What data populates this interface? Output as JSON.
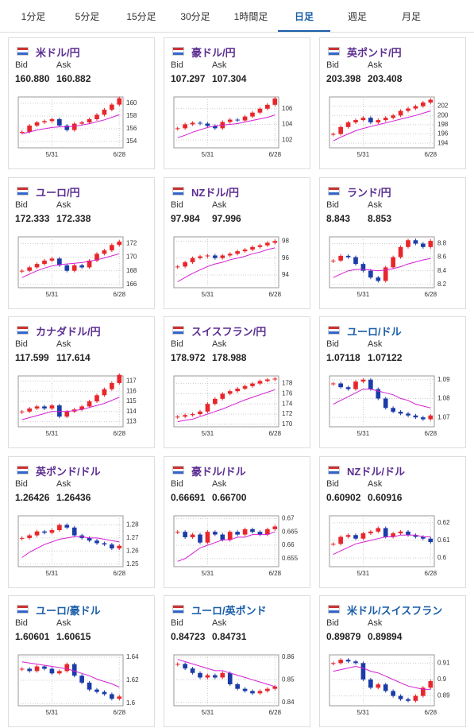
{
  "tabs": [
    "1分足",
    "5分足",
    "15分足",
    "30分足",
    "1時間足",
    "日足",
    "週足",
    "月足"
  ],
  "active_tab": 5,
  "labels": {
    "bid": "Bid",
    "ask": "Ask"
  },
  "chart_data": [
    {
      "type": "candlestick",
      "title": "米ドル/円",
      "color": "#5b2d90",
      "bid": "160.880",
      "ask": "160.882",
      "categories": [
        null,
        null,
        null,
        null,
        "5/31",
        null,
        null,
        null,
        null,
        null,
        null,
        null,
        null,
        "6/28"
      ],
      "values": [
        155.5,
        156.5,
        157,
        157.2,
        157.5,
        156.5,
        155.8,
        156.8,
        157,
        157.5,
        158.2,
        159,
        159.8,
        160.8
      ],
      "ma": [
        155.2,
        155.5,
        155.8,
        156,
        156.2,
        156.3,
        156.3,
        156.4,
        156.6,
        156.8,
        157.1,
        157.4,
        157.8,
        158.2
      ],
      "ylim": [
        153,
        161
      ],
      "yticks": [
        154,
        156,
        158,
        160
      ]
    },
    {
      "type": "candlestick",
      "title": "豪ドル/円",
      "color": "#5b2d90",
      "bid": "107.297",
      "ask": "107.304",
      "categories": [
        null,
        null,
        null,
        null,
        "5/31",
        null,
        null,
        null,
        null,
        null,
        null,
        null,
        null,
        "6/28"
      ],
      "values": [
        103.5,
        104,
        104.2,
        104.1,
        103.8,
        103.5,
        104.3,
        104.6,
        104.5,
        105,
        105.5,
        106,
        106.5,
        107.3
      ],
      "ma": [
        102.3,
        102.6,
        103,
        103.3,
        103.6,
        103.8,
        103.9,
        104,
        104.1,
        104.3,
        104.5,
        104.7,
        104.9,
        105.2
      ],
      "ylim": [
        101,
        107.5
      ],
      "yticks": [
        102,
        104,
        106
      ]
    },
    {
      "type": "candlestick",
      "title": "英ポンド/円",
      "color": "#5b2d90",
      "bid": "203.398",
      "ask": "203.408",
      "categories": [
        null,
        null,
        null,
        null,
        "5/31",
        null,
        null,
        null,
        null,
        null,
        null,
        null,
        null,
        "6/28"
      ],
      "values": [
        196,
        197.5,
        198.5,
        199,
        199.5,
        198.5,
        199,
        199.5,
        200,
        201,
        201.5,
        202,
        202.8,
        203.4
      ],
      "ma": [
        194.5,
        195.3,
        196,
        196.7,
        197.2,
        197.6,
        198,
        198.4,
        198.8,
        199.2,
        199.6,
        200,
        200.5,
        201
      ],
      "ylim": [
        193,
        204
      ],
      "yticks": [
        194,
        196,
        198,
        200,
        202
      ]
    },
    {
      "type": "candlestick",
      "title": "ユーロ/円",
      "color": "#5b2d90",
      "bid": "172.333",
      "ask": "172.338",
      "categories": [
        null,
        null,
        null,
        null,
        "5/31",
        null,
        null,
        null,
        null,
        null,
        null,
        null,
        null,
        "6/28"
      ],
      "values": [
        168,
        168.5,
        169,
        169.5,
        169.8,
        168.8,
        168,
        168.8,
        168.5,
        169.5,
        170.5,
        171,
        171.8,
        172.3
      ],
      "ma": [
        167,
        167.5,
        168,
        168.4,
        168.7,
        168.9,
        169,
        169.1,
        169.2,
        169.4,
        169.6,
        169.9,
        170.2,
        170.5
      ],
      "ylim": [
        165.5,
        173
      ],
      "yticks": [
        166,
        168,
        170,
        172
      ]
    },
    {
      "type": "candlestick",
      "title": "NZドル/円",
      "color": "#5b2d90",
      "bid": "97.984",
      "ask": "97.996",
      "categories": [
        null,
        null,
        null,
        null,
        "5/31",
        null,
        null,
        null,
        null,
        null,
        null,
        null,
        null,
        "6/28"
      ],
      "values": [
        95,
        95.5,
        96,
        96.2,
        96.3,
        96,
        96.3,
        96.5,
        96.8,
        97,
        97.3,
        97.5,
        97.8,
        98
      ],
      "ma": [
        93.2,
        93.7,
        94.2,
        94.6,
        95,
        95.3,
        95.5,
        95.8,
        96,
        96.2,
        96.5,
        96.7,
        97,
        97.2
      ],
      "ylim": [
        92.5,
        98.5
      ],
      "yticks": [
        94,
        96,
        98
      ]
    },
    {
      "type": "candlestick",
      "title": "ランド/円",
      "color": "#5b2d90",
      "bid": "8.843",
      "ask": "8.853",
      "categories": [
        null,
        null,
        null,
        null,
        "5/31",
        null,
        null,
        null,
        null,
        null,
        null,
        null,
        null,
        "6/28"
      ],
      "values": [
        8.55,
        8.62,
        8.6,
        8.5,
        8.4,
        8.3,
        8.25,
        8.45,
        8.6,
        8.75,
        8.85,
        8.8,
        8.75,
        8.84
      ],
      "ma": [
        8.3,
        8.35,
        8.4,
        8.42,
        8.42,
        8.41,
        8.4,
        8.41,
        8.43,
        8.46,
        8.5,
        8.53,
        8.56,
        8.58
      ],
      "ylim": [
        8.15,
        8.9
      ],
      "yticks": [
        8.2,
        8.4,
        8.6,
        8.8
      ]
    },
    {
      "type": "candlestick",
      "title": "カナダドル/円",
      "color": "#5b2d90",
      "bid": "117.599",
      "ask": "117.614",
      "categories": [
        null,
        null,
        null,
        null,
        "5/31",
        null,
        null,
        null,
        null,
        null,
        null,
        null,
        null,
        "6/28"
      ],
      "values": [
        114,
        114.3,
        114.5,
        114.3,
        114.6,
        113.5,
        114,
        114.2,
        114.5,
        115,
        115.6,
        116.2,
        116.8,
        117.6
      ],
      "ma": [
        113.2,
        113.4,
        113.6,
        113.8,
        114,
        114,
        114,
        114.1,
        114.2,
        114.4,
        114.6,
        114.8,
        115.1,
        115.4
      ],
      "ylim": [
        112.5,
        117.5
      ],
      "yticks": [
        113,
        114,
        115,
        116,
        117
      ]
    },
    {
      "type": "candlestick",
      "title": "スイスフラン/円",
      "color": "#5b2d90",
      "bid": "178.972",
      "ask": "178.988",
      "categories": [
        null,
        null,
        null,
        null,
        "5/31",
        null,
        null,
        null,
        null,
        null,
        null,
        null,
        null,
        "6/28"
      ],
      "values": [
        171.5,
        171.8,
        172,
        172.5,
        174,
        175,
        176,
        176.5,
        177,
        177.5,
        178,
        178.5,
        178.8,
        178.97
      ],
      "ma": [
        170.5,
        170.8,
        171,
        171.5,
        172,
        172.5,
        173,
        173.6,
        174.2,
        174.8,
        175.3,
        175.8,
        176.3,
        176.8
      ],
      "ylim": [
        169.5,
        179.5
      ],
      "yticks": [
        170,
        172,
        174,
        176,
        178
      ]
    },
    {
      "type": "candlestick",
      "title": "ユーロ/ドル",
      "color": "#1a5ea8",
      "bid": "1.07118",
      "ask": "1.07122",
      "categories": [
        null,
        null,
        null,
        null,
        "5/31",
        null,
        null,
        null,
        null,
        null,
        null,
        null,
        null,
        "6/28"
      ],
      "values": [
        1.088,
        1.086,
        1.085,
        1.089,
        1.09,
        1.085,
        1.08,
        1.075,
        1.073,
        1.072,
        1.071,
        1.07,
        1.069,
        1.071
      ],
      "ma": [
        1.077,
        1.079,
        1.081,
        1.083,
        1.085,
        1.085,
        1.084,
        1.083,
        1.082,
        1.08,
        1.079,
        1.077,
        1.076,
        1.075
      ],
      "ylim": [
        1.065,
        1.092
      ],
      "yticks": [
        1.07,
        1.08,
        1.09
      ]
    },
    {
      "type": "candlestick",
      "title": "英ポンド/ドル",
      "color": "#5b2d90",
      "bid": "1.26426",
      "ask": "1.26436",
      "categories": [
        null,
        null,
        null,
        null,
        "5/31",
        null,
        null,
        null,
        null,
        null,
        null,
        null,
        null,
        "6/28"
      ],
      "values": [
        1.27,
        1.272,
        1.275,
        1.274,
        1.276,
        1.28,
        1.278,
        1.272,
        1.27,
        1.268,
        1.266,
        1.265,
        1.262,
        1.264
      ],
      "ma": [
        1.255,
        1.259,
        1.262,
        1.265,
        1.267,
        1.269,
        1.27,
        1.271,
        1.271,
        1.27,
        1.27,
        1.269,
        1.268,
        1.267
      ],
      "ylim": [
        1.248,
        1.287
      ],
      "yticks": [
        1.25,
        1.26,
        1.27,
        1.28
      ]
    },
    {
      "type": "candlestick",
      "title": "豪ドル/ドル",
      "color": "#5b2d90",
      "bid": "0.66691",
      "ask": "0.66700",
      "categories": [
        null,
        null,
        null,
        null,
        "5/31",
        null,
        null,
        null,
        null,
        null,
        null,
        null,
        null,
        "6/28"
      ],
      "values": [
        0.665,
        0.663,
        0.664,
        0.661,
        0.665,
        0.664,
        0.662,
        0.665,
        0.664,
        0.666,
        0.665,
        0.664,
        0.666,
        0.667
      ],
      "ma": [
        0.654,
        0.655,
        0.657,
        0.659,
        0.66,
        0.661,
        0.662,
        0.662,
        0.663,
        0.663,
        0.664,
        0.664,
        0.664,
        0.665
      ],
      "ylim": [
        0.652,
        0.671
      ],
      "yticks": [
        0.655,
        0.66,
        0.665,
        0.67
      ]
    },
    {
      "type": "candlestick",
      "title": "NZドル/ドル",
      "color": "#5b2d90",
      "bid": "0.60902",
      "ask": "0.60916",
      "categories": [
        null,
        null,
        null,
        null,
        "5/31",
        null,
        null,
        null,
        null,
        null,
        null,
        null,
        null,
        "6/28"
      ],
      "values": [
        0.608,
        0.612,
        0.613,
        0.611,
        0.614,
        0.615,
        0.617,
        0.612,
        0.614,
        0.615,
        0.613,
        0.612,
        0.611,
        0.609
      ],
      "ma": [
        0.602,
        0.604,
        0.606,
        0.608,
        0.609,
        0.61,
        0.611,
        0.612,
        0.612,
        0.613,
        0.613,
        0.613,
        0.612,
        0.612
      ],
      "ylim": [
        0.595,
        0.624
      ],
      "yticks": [
        0.6,
        0.61,
        0.62
      ]
    },
    {
      "type": "candlestick",
      "title": "ユーロ/豪ドル",
      "color": "#1a5ea8",
      "bid": "1.60601",
      "ask": "1.60615",
      "categories": [
        null,
        null,
        null,
        null,
        "5/31",
        null,
        null,
        null,
        null,
        null,
        null,
        null,
        null,
        "6/28"
      ],
      "values": [
        1.63,
        1.628,
        1.632,
        1.63,
        1.626,
        1.628,
        1.634,
        1.624,
        1.618,
        1.612,
        1.61,
        1.608,
        1.604,
        1.606
      ],
      "ma": [
        1.636,
        1.635,
        1.634,
        1.633,
        1.632,
        1.631,
        1.63,
        1.628,
        1.626,
        1.624,
        1.621,
        1.619,
        1.617,
        1.614
      ],
      "ylim": [
        1.598,
        1.642
      ],
      "yticks": [
        1.6,
        1.62,
        1.64
      ]
    },
    {
      "type": "candlestick",
      "title": "ユーロ/英ポンド",
      "color": "#1a5ea8",
      "bid": "0.84723",
      "ask": "0.84731",
      "categories": [
        null,
        null,
        null,
        null,
        "5/31",
        null,
        null,
        null,
        null,
        null,
        null,
        null,
        null,
        "6/28"
      ],
      "values": [
        0.857,
        0.855,
        0.853,
        0.851,
        0.852,
        0.851,
        0.853,
        0.848,
        0.846,
        0.845,
        0.844,
        0.845,
        0.846,
        0.847
      ],
      "ma": [
        0.859,
        0.858,
        0.857,
        0.856,
        0.855,
        0.854,
        0.854,
        0.853,
        0.852,
        0.851,
        0.85,
        0.849,
        0.848,
        0.847
      ],
      "ylim": [
        0.8385,
        0.861
      ],
      "yticks": [
        0.84,
        0.85,
        0.86
      ]
    },
    {
      "type": "candlestick",
      "title": "米ドル/スイスフラン",
      "color": "#1a5ea8",
      "bid": "0.89879",
      "ask": "0.89894",
      "categories": [
        null,
        null,
        null,
        null,
        "5/31",
        null,
        null,
        null,
        null,
        null,
        null,
        null,
        null,
        "6/28"
      ],
      "values": [
        0.91,
        0.912,
        0.911,
        0.91,
        0.9,
        0.895,
        0.897,
        0.893,
        0.89,
        0.888,
        0.887,
        0.89,
        0.895,
        0.899
      ],
      "ma": [
        0.905,
        0.906,
        0.907,
        0.908,
        0.907,
        0.905,
        0.904,
        0.902,
        0.9,
        0.898,
        0.896,
        0.895,
        0.894,
        0.894
      ],
      "ylim": [
        0.884,
        0.915
      ],
      "yticks": [
        0.89,
        0.9,
        0.91
      ]
    }
  ]
}
